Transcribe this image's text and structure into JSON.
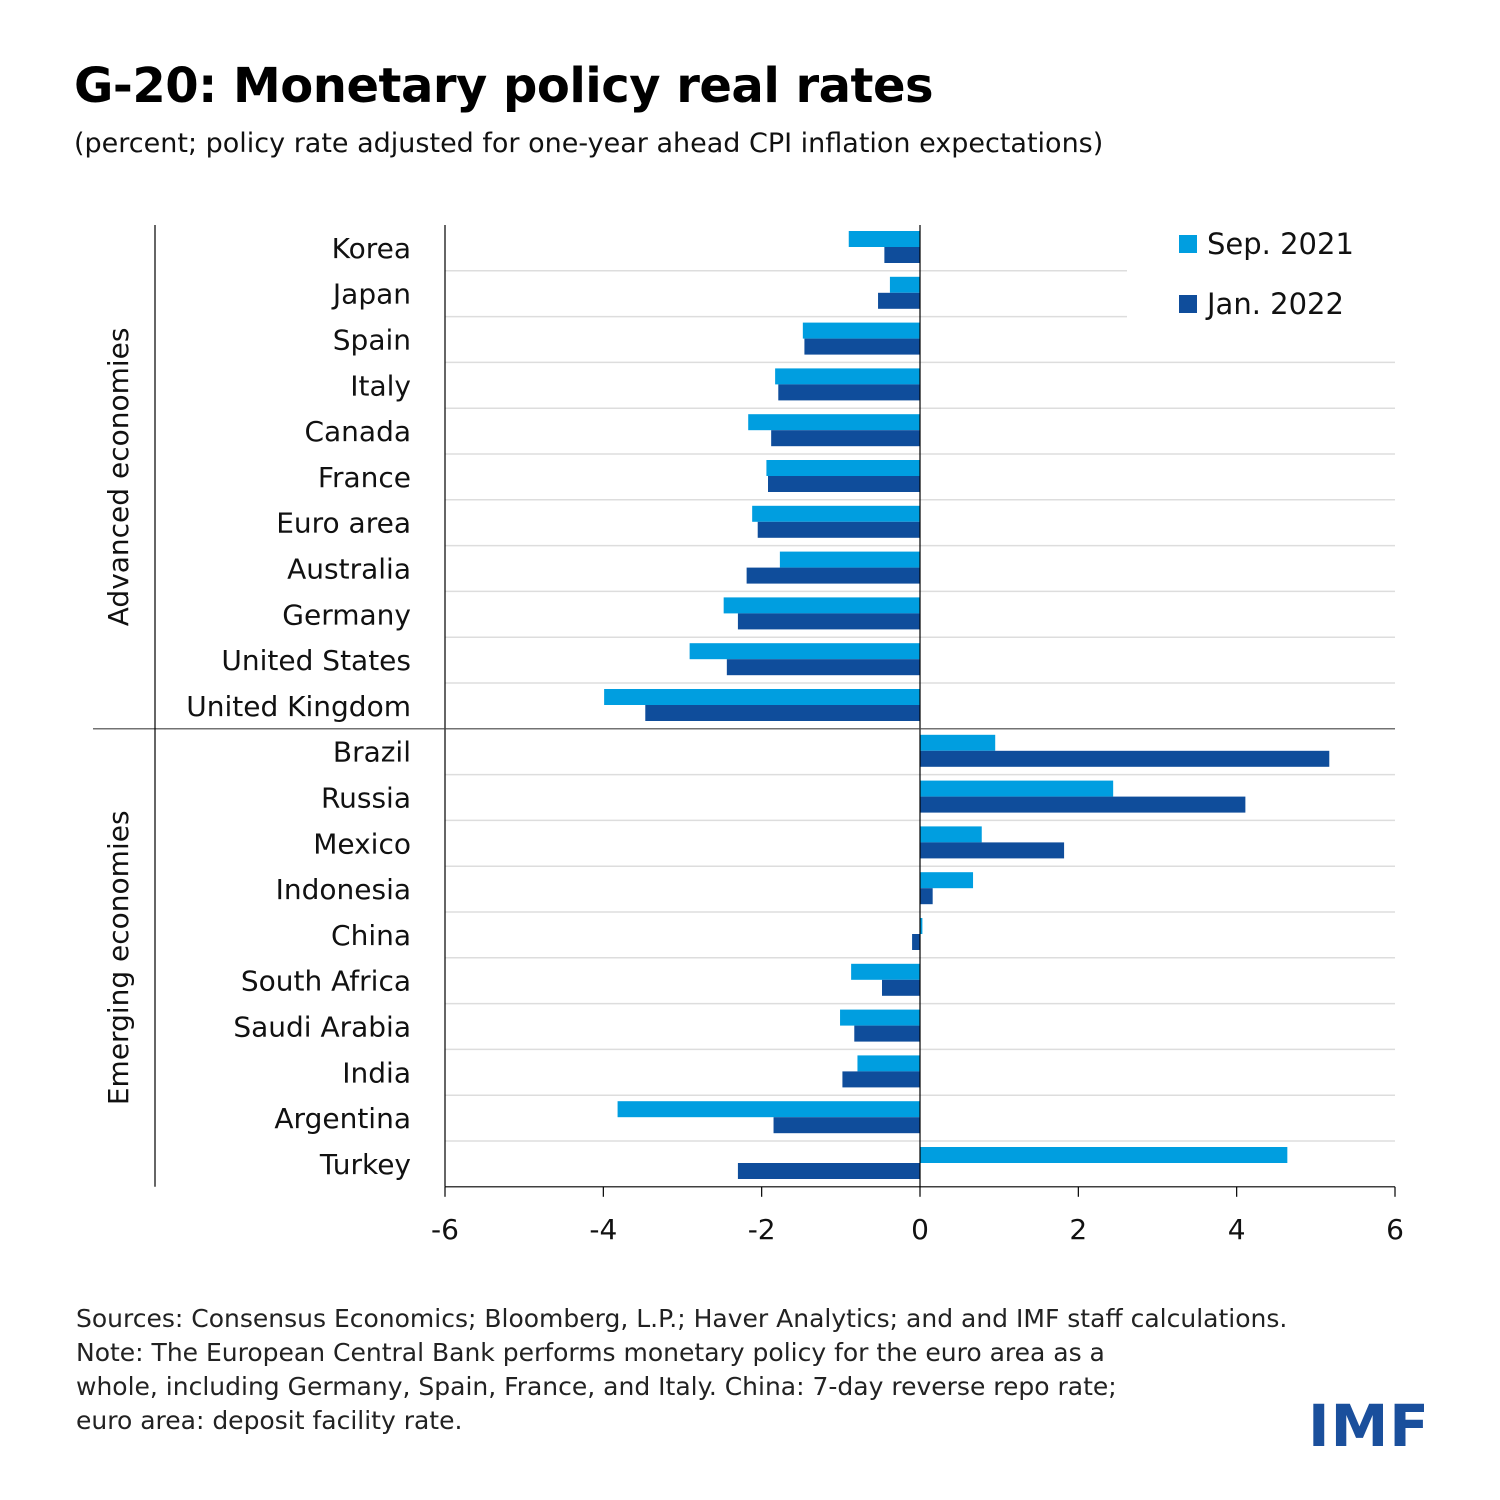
{
  "title": "G-20: Monetary policy real rates",
  "subtitle": "(percent; policy rate adjusted for one-year ahead CPI inflation expectations)",
  "colors": {
    "series1": "#009ee0",
    "series2": "#0f4d9b",
    "grid": "#dddddd",
    "axis": "#000000"
  },
  "chart_data": {
    "type": "bar",
    "orientation": "horizontal",
    "groups": [
      {
        "label": "Advanced economies",
        "categories": [
          "Korea",
          "Japan",
          "Spain",
          "Italy",
          "Canada",
          "France",
          "Euro area",
          "Australia",
          "Germany",
          "United States",
          "United Kingdom"
        ]
      },
      {
        "label": "Emerging economies",
        "categories": [
          "Brazil",
          "Russia",
          "Mexico",
          "Indonesia",
          "China",
          "South Africa",
          "Saudi Arabia",
          "India",
          "Argentina",
          "Turkey"
        ]
      }
    ],
    "categories": [
      "Korea",
      "Japan",
      "Spain",
      "Italy",
      "Canada",
      "France",
      "Euro area",
      "Australia",
      "Germany",
      "United States",
      "United Kingdom",
      "Brazil",
      "Russia",
      "Mexico",
      "Indonesia",
      "China",
      "South Africa",
      "Saudi Arabia",
      "India",
      "Argentina",
      "Turkey"
    ],
    "series": [
      {
        "name": "Sep. 2021",
        "values": [
          -0.9,
          -0.38,
          -1.48,
          -1.83,
          -2.17,
          -1.94,
          -2.12,
          -1.77,
          -2.48,
          -2.91,
          -3.99,
          0.95,
          2.44,
          0.78,
          0.67,
          0.03,
          -0.87,
          -1.01,
          -0.79,
          -3.82,
          4.64
        ]
      },
      {
        "name": "Jan. 2022",
        "values": [
          -0.45,
          -0.53,
          -1.46,
          -1.79,
          -1.88,
          -1.92,
          -2.05,
          -2.19,
          -2.3,
          -2.44,
          -3.47,
          5.17,
          4.11,
          1.82,
          0.16,
          -0.1,
          -0.48,
          -0.83,
          -0.98,
          -1.85,
          -2.3
        ]
      }
    ],
    "xlim": [
      -6,
      6
    ],
    "xticks": [
      "-6",
      "-4",
      "-2",
      "0",
      "2",
      "4",
      "6"
    ],
    "grid": true,
    "legend_position": "top-right"
  },
  "footnote": {
    "line1": "Sources: Consensus Economics; Bloomberg, L.P.; Haver Analytics; and and IMF staff calculations.",
    "line2": "Note: The European Central Bank performs monetary policy for the euro area as a",
    "line3": "whole, including Germany, Spain, France, and Italy. China: 7-day reverse repo rate;",
    "line4": "euro area: deposit facility rate."
  },
  "logo_text": "IMF"
}
